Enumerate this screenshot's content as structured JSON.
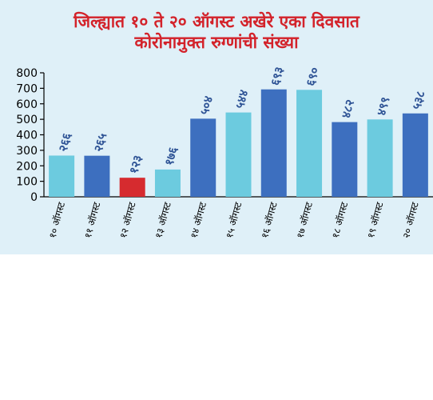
{
  "chart_data": {
    "type": "bar",
    "title_lines": [
      "जिल्ह्यात १० ते २० ऑगस्ट अखेरे एका दिवसात",
      "कोरोनामुक्त रुग्णांची संख्या"
    ],
    "xlabel": "",
    "ylabel": "",
    "ylim": [
      0,
      800
    ],
    "y_ticks": [
      "0",
      "100",
      "200",
      "300",
      "400",
      "500",
      "600",
      "700",
      "800"
    ],
    "grid": false,
    "legend": "none",
    "categories": [
      "१० ऑगस्ट",
      "११ ऑगस्ट",
      "१२ ऑगस्ट",
      "१३ ऑगस्ट",
      "१४ ऑगस्ट",
      "१५ ऑगस्ट",
      "१६ ऑगस्ट",
      "१७ ऑगस्ट",
      "१८ ऑगस्ट",
      "१९ ऑगस्ट",
      "२० ऑगस्ट"
    ],
    "values": [
      266,
      265,
      123,
      176,
      504,
      544,
      693,
      690,
      482,
      499,
      538
    ],
    "value_labels": [
      "२६६",
      "२६५",
      "१२३",
      "१७६",
      "५०४",
      "५४४",
      "६९३",
      "६९०",
      "४८२",
      "४९९",
      "५३८"
    ],
    "bar_colors": [
      "#6ccbdf",
      "#3d6fbf",
      "#d62b2f",
      "#6ccbdf",
      "#3d6fbf",
      "#6ccbdf",
      "#3d6fbf",
      "#6ccbdf",
      "#3d6fbf",
      "#6ccbdf",
      "#3d6fbf"
    ],
    "colors": {
      "title": "#d3222a",
      "background": "#dff0f8",
      "axis": "#000000",
      "value_label": "#2f5496"
    }
  }
}
